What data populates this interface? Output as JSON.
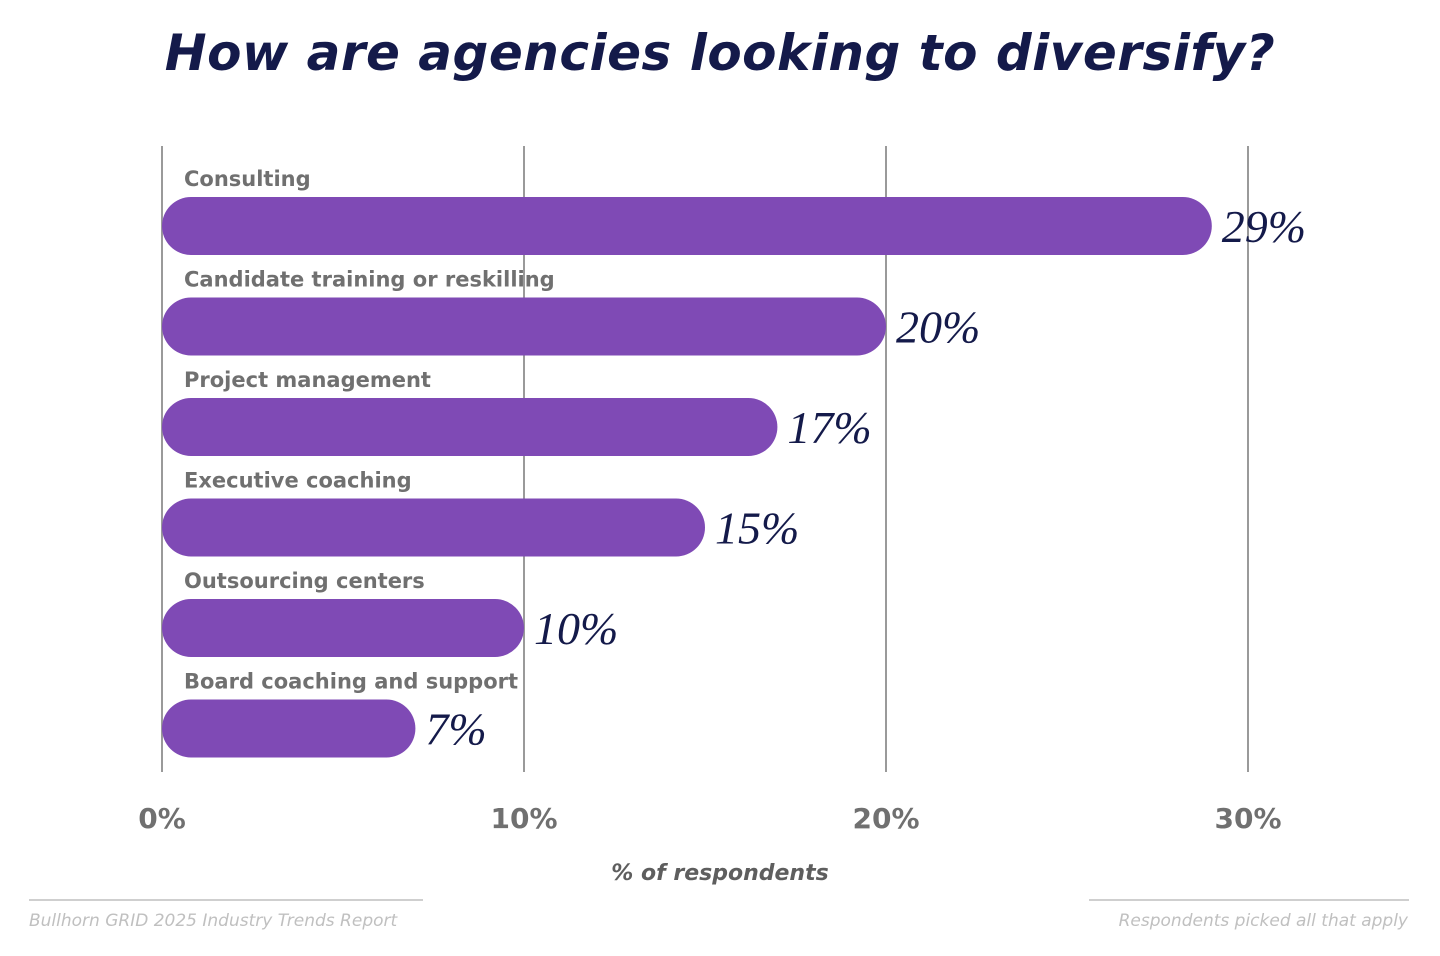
{
  "chart_data": {
    "type": "bar",
    "orientation": "horizontal",
    "title": "How are agencies looking to diversify?",
    "categories": [
      "Consulting",
      "Candidate training or reskilling",
      "Project management",
      "Executive coaching",
      "Outsourcing centers",
      "Board coaching and support"
    ],
    "values": [
      29,
      20,
      17,
      15,
      10,
      7
    ],
    "data_labels": [
      "29%",
      "20%",
      "17%",
      "15%",
      "10%",
      "7%"
    ],
    "xlabel": "% of respondents",
    "xlim": [
      0,
      30
    ],
    "xticks": [
      0,
      10,
      20,
      30
    ],
    "xtick_labels": [
      "0%",
      "10%",
      "20%",
      "30%"
    ],
    "grid": "vertical",
    "colors": {
      "bar": "#7f4ab5",
      "title": "#141a4a",
      "grid": "#9a9a9a"
    }
  },
  "footer": {
    "source": "Bullhorn GRID 2025 Industry Trends Report",
    "note": "Respondents picked all that apply"
  }
}
